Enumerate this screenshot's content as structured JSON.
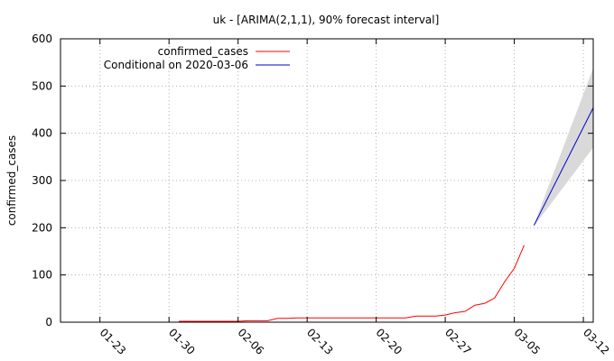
{
  "chart_data": {
    "type": "line",
    "title": "uk -  [ARIMA(2,1,1), 90% forecast interval]",
    "xlabel": "",
    "ylabel": "confirmed_cases",
    "ylim": [
      0,
      600
    ],
    "xlim": [
      "2020-01-19",
      "2020-03-13"
    ],
    "yticks": [
      "0",
      "100",
      "200",
      "300",
      "400",
      "500",
      "600"
    ],
    "xticks": [
      {
        "label": "01-23",
        "date": "2020-01-23"
      },
      {
        "label": "01-30",
        "date": "2020-01-30"
      },
      {
        "label": "02-06",
        "date": "2020-02-06"
      },
      {
        "label": "02-13",
        "date": "2020-02-13"
      },
      {
        "label": "02-20",
        "date": "2020-02-20"
      },
      {
        "label": "02-27",
        "date": "2020-02-27"
      },
      {
        "label": "03-05",
        "date": "2020-03-05"
      },
      {
        "label": "03-12",
        "date": "2020-03-12"
      }
    ],
    "grid": true,
    "legend_position": "top-left",
    "series": [
      {
        "name": "confirmed_cases",
        "color": "#ff0000",
        "points": [
          [
            "2020-01-31",
            2
          ],
          [
            "2020-02-01",
            2
          ],
          [
            "2020-02-02",
            2
          ],
          [
            "2020-02-03",
            2
          ],
          [
            "2020-02-04",
            2
          ],
          [
            "2020-02-05",
            2
          ],
          [
            "2020-02-06",
            2
          ],
          [
            "2020-02-07",
            3
          ],
          [
            "2020-02-08",
            3
          ],
          [
            "2020-02-09",
            3
          ],
          [
            "2020-02-10",
            8
          ],
          [
            "2020-02-11",
            8
          ],
          [
            "2020-02-12",
            9
          ],
          [
            "2020-02-13",
            9
          ],
          [
            "2020-02-14",
            9
          ],
          [
            "2020-02-15",
            9
          ],
          [
            "2020-02-16",
            9
          ],
          [
            "2020-02-17",
            9
          ],
          [
            "2020-02-18",
            9
          ],
          [
            "2020-02-19",
            9
          ],
          [
            "2020-02-20",
            9
          ],
          [
            "2020-02-21",
            9
          ],
          [
            "2020-02-22",
            9
          ],
          [
            "2020-02-23",
            9
          ],
          [
            "2020-02-24",
            13
          ],
          [
            "2020-02-25",
            13
          ],
          [
            "2020-02-26",
            13
          ],
          [
            "2020-02-27",
            15
          ],
          [
            "2020-02-28",
            20
          ],
          [
            "2020-02-29",
            23
          ],
          [
            "2020-03-01",
            36
          ],
          [
            "2020-03-02",
            40
          ],
          [
            "2020-03-03",
            51
          ],
          [
            "2020-03-04",
            85
          ],
          [
            "2020-03-05",
            114
          ],
          [
            "2020-03-06",
            163
          ]
        ]
      },
      {
        "name": "Conditional on 2020-03-06",
        "color": "#0000cc",
        "points": [
          [
            "2020-03-07",
            205
          ],
          [
            "2020-03-13",
            454
          ]
        ],
        "interval_lower": [
          [
            "2020-03-07",
            203
          ],
          [
            "2020-03-13",
            370
          ]
        ],
        "interval_upper": [
          [
            "2020-03-07",
            207
          ],
          [
            "2020-03-13",
            538
          ]
        ],
        "interval_color": "#d9d9d9"
      }
    ]
  }
}
